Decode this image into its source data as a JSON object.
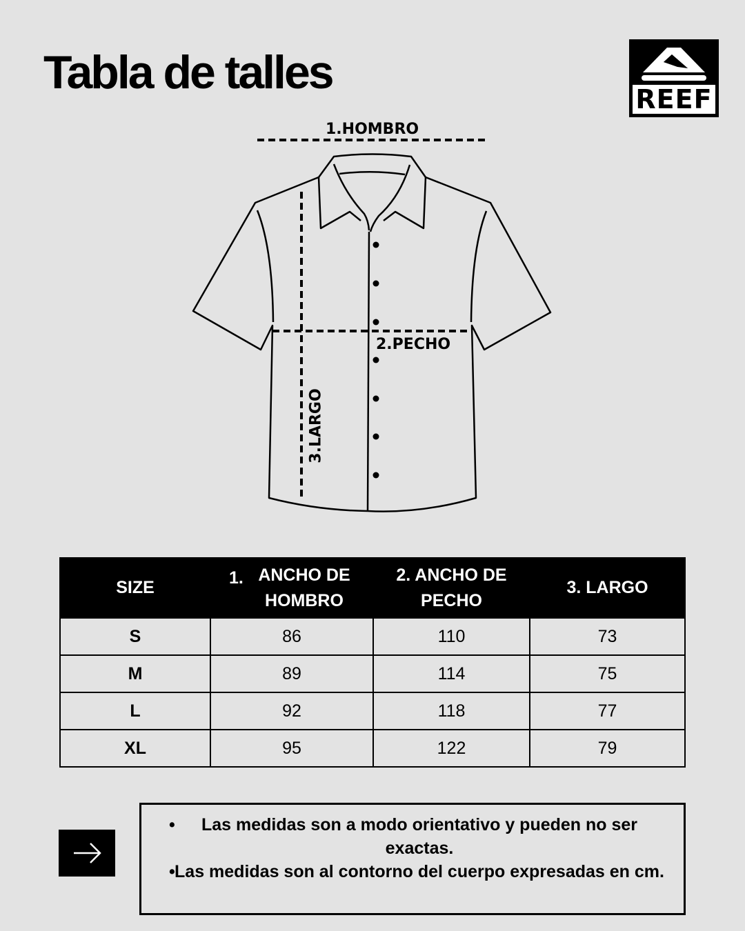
{
  "title": "Tabla de talles",
  "brand": {
    "name": "REEF"
  },
  "diagram": {
    "shoulder": "1.HOMBRO",
    "chest": "2.PECHO",
    "length": "3.LARGO"
  },
  "table": {
    "headers": [
      {
        "num": "",
        "text": "SIZE"
      },
      {
        "num": "1.",
        "text": "ANCHO DE HOMBRO"
      },
      {
        "num": "",
        "text": "2. ANCHO DE PECHO"
      },
      {
        "num": "",
        "text": "3. LARGO"
      }
    ],
    "rows": [
      [
        "S",
        "86",
        "110",
        "73"
      ],
      [
        "M",
        "89",
        "114",
        "75"
      ],
      [
        "L",
        "92",
        "118",
        "77"
      ],
      [
        "XL",
        "95",
        "122",
        "79"
      ]
    ]
  },
  "notes": [
    "Las medidas son a modo orientativo y pueden no ser exactas.",
    "Las medidas son al contorno del cuerpo expresadas en cm."
  ],
  "icons": {
    "next": "arrow-right-icon"
  },
  "colors": {
    "background": "#e3e3e3",
    "ink": "#000000"
  }
}
